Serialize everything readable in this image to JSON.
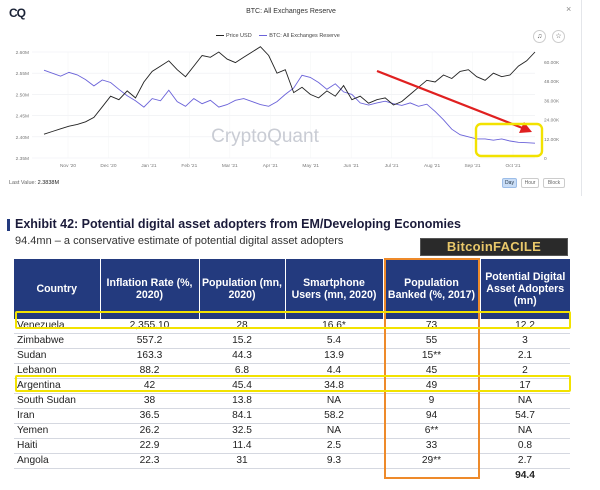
{
  "app": {
    "logo": "CQ",
    "chart_title": "BTC: All Exchanges Reserve",
    "close_label": "×",
    "legend": [
      {
        "label": "Price USD",
        "color": "#222222"
      },
      {
        "label": "BTC: All Exchanges Reserve",
        "color": "#6b63d9"
      }
    ],
    "bell_icon": "bell-icon",
    "star_icon": "star-icon",
    "bell_glyph": "♫",
    "star_glyph": "☆",
    "watermark": "CryptoQuant",
    "last_value_label": "Last Value:",
    "last_value": "2.3838M",
    "range_buttons": [
      "Day",
      "Hour",
      "Block"
    ],
    "active_range": "Day",
    "colors": {
      "price": "#222222",
      "reserve": "#6b63d9",
      "arrow": "#e02020",
      "highlight": "#f2e200",
      "column_box": "#ee8a2a",
      "header": "#233a7e"
    }
  },
  "chart_data": {
    "type": "line",
    "x_ticks": [
      "Nov '20",
      "Dec '20",
      "Jan '21",
      "Feb '21",
      "Mar '21",
      "Apr '21",
      "May '21",
      "Jun '21",
      "Jul '21",
      "Aug '21",
      "Sep '21",
      "Oct '21"
    ],
    "left_axis": {
      "ticks": [
        "2.60M",
        "2.55M",
        "2.50M",
        "2.45M",
        "2.40M",
        "2.35M"
      ],
      "range": [
        2.35,
        2.6
      ]
    },
    "right_axis": {
      "ticks": [
        "60.00K",
        "48.00K",
        "36.00K",
        "24.00K",
        "12.00K",
        "0"
      ],
      "range": [
        0,
        60
      ]
    },
    "series": [
      {
        "name": "Price USD",
        "axis": "right",
        "values": [
          13.5,
          15,
          16.5,
          18,
          19,
          20.5,
          23,
          29,
          35,
          33,
          38,
          34,
          43,
          49,
          52,
          55,
          50,
          46,
          52,
          58,
          57,
          60,
          56,
          54,
          57,
          60,
          63,
          58,
          48,
          50,
          37,
          40,
          36,
          34,
          38,
          35,
          41,
          33,
          35,
          31,
          33,
          34,
          30,
          32,
          36,
          40,
          44,
          43,
          47,
          45,
          49,
          50,
          46,
          44,
          48,
          46,
          47,
          52,
          55,
          60
        ]
      },
      {
        "name": "BTC: All Exchanges Reserve",
        "axis": "left",
        "values": [
          2.557,
          2.55,
          2.543,
          2.552,
          2.546,
          2.535,
          2.52,
          2.534,
          2.528,
          2.512,
          2.497,
          2.485,
          2.47,
          2.49,
          2.485,
          2.51,
          2.483,
          2.472,
          2.49,
          2.478,
          2.486,
          2.47,
          2.476,
          2.486,
          2.49,
          2.483,
          2.476,
          2.472,
          2.483,
          2.5,
          2.515,
          2.545,
          2.54,
          2.528,
          2.512,
          2.525,
          2.506,
          2.5,
          2.48,
          2.475,
          2.48,
          2.484,
          2.478,
          2.474,
          2.48,
          2.472,
          2.477,
          2.46,
          2.44,
          2.418,
          2.405,
          2.4,
          2.395,
          2.395,
          2.392,
          2.395,
          2.39,
          2.387,
          2.386,
          2.385
        ]
      }
    ]
  },
  "exhibit": {
    "title": "Exhibit 42: Potential digital asset adopters from EM/Developing Economies",
    "subtitle": "94.4mn – a conservative estimate of potential digital asset adopters",
    "brand": "BitcoinFACILE",
    "columns": [
      "Country",
      "Inflation Rate (%, 2020)",
      "Population (mn, 2020)",
      "Smartphone Users (mn, 2020)",
      "Population Banked (%, 2017)",
      "Potential Digital Asset Adopters (mn)"
    ],
    "rows": [
      [
        "Venezuela",
        "2,355.10",
        "28",
        "16.6*",
        "73",
        "12.2"
      ],
      [
        "Zimbabwe",
        "557.2",
        "15.2",
        "5.4",
        "55",
        "3"
      ],
      [
        "Sudan",
        "163.3",
        "44.3",
        "13.9",
        "15**",
        "2.1"
      ],
      [
        "Lebanon",
        "88.2",
        "6.8",
        "4.4",
        "45",
        "2"
      ],
      [
        "Argentina",
        "42",
        "45.4",
        "34.8",
        "49",
        "17"
      ],
      [
        "South Sudan",
        "38",
        "13.8",
        "NA",
        "9",
        "NA"
      ],
      [
        "Iran",
        "36.5",
        "84.1",
        "58.2",
        "94",
        "54.7"
      ],
      [
        "Yemen",
        "26.2",
        "32.5",
        "NA",
        "6**",
        "NA"
      ],
      [
        "Haiti",
        "22.9",
        "11.4",
        "2.5",
        "33",
        "0.8"
      ],
      [
        "Angola",
        "22.3",
        "31",
        "9.3",
        "29**",
        "2.7"
      ]
    ],
    "total": "94.4",
    "highlighted_rows": [
      "Venezuela",
      "Argentina"
    ],
    "highlighted_column": "Population Banked (%, 2017)"
  }
}
